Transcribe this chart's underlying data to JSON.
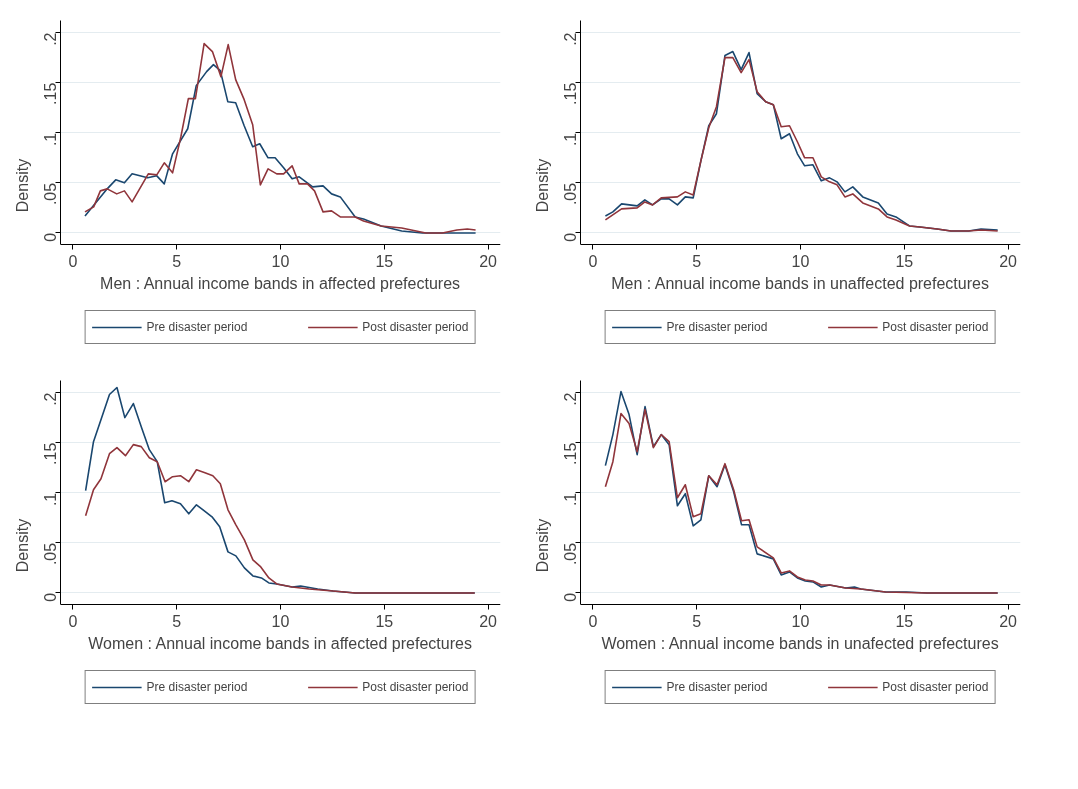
{
  "chart_data": [
    {
      "type": "line",
      "xlabel": "Men : Annual income bands in affected prefectures",
      "ylabel": "Density",
      "xlim": [
        -0.6,
        20.6
      ],
      "xticks": [
        0,
        5,
        10,
        15,
        20
      ],
      "ylim": [
        -0.012,
        0.212
      ],
      "yticks": [
        {
          "value": 0,
          "label": "0"
        },
        {
          "value": 0.05,
          "label": ".05"
        },
        {
          "value": 0.1,
          "label": ".1"
        },
        {
          "value": 0.15,
          "label": ".15"
        },
        {
          "value": 0.2,
          "label": ".2"
        }
      ],
      "grid": "y",
      "legend": "bottom",
      "line_style": "solid",
      "marker": "none",
      "series": [
        {
          "name": "Pre disaster period",
          "color": "#1a476f",
          "x": [
            0.58,
            1.65,
            2.06,
            2.48,
            2.85,
            3.6,
            4.04,
            4.4,
            4.8,
            5.53,
            5.94,
            6.44,
            6.77,
            7.1,
            7.46,
            7.84,
            8.25,
            8.66,
            9.0,
            9.4,
            9.74,
            10.15,
            10.56,
            10.9,
            11.55,
            12.05,
            12.46,
            12.88,
            13.6,
            14.0,
            14.85,
            15.84,
            16.83,
            17.8,
            19.4
          ],
          "values": [
            0.017,
            0.044,
            0.053,
            0.05,
            0.059,
            0.055,
            0.057,
            0.049,
            0.079,
            0.104,
            0.147,
            0.161,
            0.168,
            0.162,
            0.131,
            0.13,
            0.107,
            0.086,
            0.089,
            0.075,
            0.075,
            0.065,
            0.054,
            0.056,
            0.046,
            0.047,
            0.039,
            0.036,
            0.016,
            0.014,
            0.007,
            0.002,
            0,
            0,
            0
          ]
        },
        {
          "name": "Post disaster period",
          "color": "#90353b",
          "x": [
            0.58,
            1.0,
            1.32,
            1.65,
            2.11,
            2.48,
            2.85,
            3.63,
            4.04,
            4.4,
            4.8,
            5.2,
            5.56,
            5.9,
            6.32,
            6.72,
            7.13,
            7.48,
            7.84,
            8.25,
            8.66,
            9.03,
            9.4,
            9.82,
            10.15,
            10.56,
            10.9,
            11.3,
            11.64,
            12.05,
            12.46,
            12.88,
            13.6,
            14.0,
            14.85,
            15.84,
            17.0,
            17.8,
            18.5,
            19.0,
            19.4
          ],
          "values": [
            0.021,
            0.026,
            0.042,
            0.044,
            0.039,
            0.042,
            0.031,
            0.059,
            0.058,
            0.07,
            0.06,
            0.096,
            0.134,
            0.134,
            0.189,
            0.181,
            0.156,
            0.188,
            0.153,
            0.133,
            0.108,
            0.048,
            0.064,
            0.059,
            0.059,
            0.067,
            0.049,
            0.049,
            0.042,
            0.021,
            0.022,
            0.016,
            0.016,
            0.012,
            0.007,
            0.005,
            0,
            0,
            0.003,
            0.004,
            0.003
          ]
        }
      ]
    },
    {
      "type": "line",
      "xlabel": "Men : Annual income bands in unaffected prefectures",
      "ylabel": "Density",
      "xlim": [
        -0.6,
        20.6
      ],
      "xticks": [
        0,
        5,
        10,
        15,
        20
      ],
      "ylim": [
        -0.012,
        0.212
      ],
      "yticks": [
        {
          "value": 0,
          "label": "0"
        },
        {
          "value": 0.05,
          "label": ".05"
        },
        {
          "value": 0.1,
          "label": ".1"
        },
        {
          "value": 0.15,
          "label": ".15"
        },
        {
          "value": 0.2,
          "label": ".2"
        }
      ],
      "grid": "y",
      "legend": "bottom",
      "line_style": "solid",
      "marker": "none",
      "series": [
        {
          "name": "Pre disaster period",
          "color": "#1a476f",
          "x": [
            0.6,
            0.96,
            1.38,
            2.13,
            2.5,
            2.87,
            3.29,
            3.67,
            4.07,
            4.45,
            4.83,
            5.2,
            5.58,
            5.95,
            6.36,
            6.74,
            7.14,
            7.52,
            7.91,
            8.32,
            8.69,
            9.07,
            9.47,
            9.85,
            10.2,
            10.6,
            11.0,
            11.4,
            11.76,
            12.14,
            12.52,
            13.0,
            13.75,
            14.17,
            14.6,
            15.25,
            15.75,
            16.58,
            17.25,
            18.1,
            18.7,
            19.5
          ],
          "values": [
            0.017,
            0.021,
            0.029,
            0.027,
            0.033,
            0.028,
            0.034,
            0.034,
            0.028,
            0.036,
            0.035,
            0.072,
            0.107,
            0.119,
            0.177,
            0.181,
            0.163,
            0.18,
            0.139,
            0.131,
            0.128,
            0.094,
            0.099,
            0.079,
            0.067,
            0.068,
            0.052,
            0.055,
            0.051,
            0.041,
            0.046,
            0.036,
            0.03,
            0.019,
            0.016,
            0.007,
            0.006,
            0.004,
            0.002,
            0.002,
            0.004,
            0.003
          ]
        },
        {
          "name": "Post disaster period",
          "color": "#90353b",
          "x": [
            0.6,
            1.38,
            2.13,
            2.5,
            2.87,
            3.29,
            4.07,
            4.45,
            4.83,
            5.2,
            5.58,
            5.95,
            6.36,
            6.74,
            7.14,
            7.52,
            7.91,
            8.32,
            8.69,
            9.07,
            9.47,
            9.85,
            10.2,
            10.6,
            11.0,
            11.4,
            11.76,
            12.14,
            12.52,
            13.0,
            13.75,
            14.17,
            14.6,
            15.25,
            15.75,
            16.58,
            17.25,
            18.1,
            18.7,
            19.5
          ],
          "values": [
            0.013,
            0.024,
            0.025,
            0.031,
            0.028,
            0.035,
            0.036,
            0.041,
            0.038,
            0.072,
            0.105,
            0.126,
            0.175,
            0.175,
            0.16,
            0.173,
            0.141,
            0.131,
            0.128,
            0.106,
            0.107,
            0.091,
            0.075,
            0.075,
            0.056,
            0.051,
            0.048,
            0.036,
            0.039,
            0.03,
            0.024,
            0.016,
            0.013,
            0.007,
            0.006,
            0.004,
            0.002,
            0.002,
            0.003,
            0.002
          ]
        }
      ]
    },
    {
      "type": "line",
      "xlabel": "Women : Annual income bands in affected prefectures",
      "ylabel": "Density",
      "xlim": [
        -0.6,
        20.6
      ],
      "xticks": [
        0,
        5,
        10,
        15,
        20
      ],
      "ylim": [
        -0.012,
        0.212
      ],
      "yticks": [
        {
          "value": 0,
          "label": "0"
        },
        {
          "value": 0.05,
          "label": ".05"
        },
        {
          "value": 0.1,
          "label": ".1"
        },
        {
          "value": 0.15,
          "label": ".15"
        },
        {
          "value": 0.2,
          "label": ".2"
        }
      ],
      "grid": "y",
      "legend": "bottom",
      "line_style": "solid",
      "marker": "none",
      "series": [
        {
          "name": "Pre disaster period",
          "color": "#1a476f",
          "x": [
            0.61,
            0.99,
            1.76,
            2.12,
            2.5,
            2.91,
            3.32,
            3.68,
            4.06,
            4.42,
            4.77,
            5.18,
            5.58,
            5.95,
            6.7,
            7.07,
            7.47,
            7.85,
            8.26,
            8.67,
            9.08,
            9.44,
            9.82,
            10.56,
            10.97,
            11.79,
            12.53,
            13.6,
            15.3,
            19.36
          ],
          "values": [
            0.102,
            0.151,
            0.198,
            0.205,
            0.175,
            0.189,
            0.164,
            0.143,
            0.131,
            0.09,
            0.092,
            0.089,
            0.079,
            0.088,
            0.076,
            0.066,
            0.041,
            0.037,
            0.025,
            0.017,
            0.015,
            0.01,
            0.009,
            0.006,
            0.007,
            0.004,
            0.002,
            0,
            0,
            0
          ]
        },
        {
          "name": "Post disaster period",
          "color": "#90353b",
          "x": [
            0.61,
            0.99,
            1.35,
            1.76,
            2.12,
            2.53,
            2.91,
            3.29,
            3.68,
            4.06,
            4.44,
            4.8,
            5.18,
            5.58,
            5.95,
            6.36,
            6.74,
            7.1,
            7.47,
            7.85,
            8.26,
            8.67,
            9.05,
            9.44,
            9.82,
            10.56,
            11.38,
            12.53,
            13.6,
            19.36
          ],
          "values": [
            0.077,
            0.103,
            0.114,
            0.139,
            0.145,
            0.137,
            0.148,
            0.146,
            0.135,
            0.131,
            0.111,
            0.116,
            0.117,
            0.111,
            0.123,
            0.12,
            0.117,
            0.109,
            0.083,
            0.068,
            0.053,
            0.033,
            0.026,
            0.015,
            0.009,
            0.006,
            0.004,
            0.002,
            0,
            0
          ]
        }
      ]
    },
    {
      "type": "line",
      "xlabel": "Women : Annual income bands in unafected prefectures",
      "ylabel": "Density",
      "xlim": [
        -0.6,
        20.6
      ],
      "xticks": [
        0,
        5,
        10,
        15,
        20
      ],
      "ylim": [
        -0.012,
        0.212
      ],
      "yticks": [
        {
          "value": 0,
          "label": "0"
        },
        {
          "value": 0.05,
          "label": ".05"
        },
        {
          "value": 0.1,
          "label": ".1"
        },
        {
          "value": 0.15,
          "label": ".15"
        },
        {
          "value": 0.2,
          "label": ".2"
        }
      ],
      "grid": "y",
      "legend": "bottom",
      "line_style": "solid",
      "marker": "none",
      "series": [
        {
          "name": "Pre disaster period",
          "color": "#1a476f",
          "x": [
            0.6,
            0.96,
            1.35,
            1.74,
            2.13,
            2.51,
            2.91,
            3.29,
            3.67,
            4.07,
            4.45,
            4.83,
            5.2,
            5.58,
            5.98,
            6.36,
            6.78,
            7.16,
            7.52,
            7.91,
            8.69,
            9.07,
            9.47,
            9.85,
            10.23,
            10.6,
            11.0,
            11.4,
            12.18,
            12.6,
            12.9,
            14.1,
            15.1,
            16.1,
            19.5
          ],
          "values": [
            0.127,
            0.158,
            0.201,
            0.178,
            0.138,
            0.186,
            0.146,
            0.158,
            0.148,
            0.087,
            0.099,
            0.067,
            0.073,
            0.117,
            0.106,
            0.128,
            0.101,
            0.068,
            0.068,
            0.039,
            0.034,
            0.018,
            0.021,
            0.015,
            0.012,
            0.011,
            0.006,
            0.008,
            0.005,
            0.006,
            0.004,
            0.001,
            0.001,
            0,
            0
          ]
        },
        {
          "name": "Post disaster period",
          "color": "#90353b",
          "x": [
            0.6,
            0.96,
            1.35,
            1.74,
            2.13,
            2.51,
            2.91,
            3.29,
            3.67,
            4.07,
            4.45,
            4.83,
            5.2,
            5.58,
            5.98,
            6.36,
            6.78,
            7.16,
            7.52,
            7.91,
            8.69,
            9.07,
            9.47,
            9.85,
            10.23,
            10.6,
            11.0,
            11.4,
            12.18,
            12.9,
            14.1,
            16.1,
            19.5
          ],
          "values": [
            0.106,
            0.131,
            0.179,
            0.169,
            0.141,
            0.183,
            0.145,
            0.158,
            0.151,
            0.095,
            0.108,
            0.076,
            0.079,
            0.117,
            0.108,
            0.129,
            0.103,
            0.072,
            0.073,
            0.046,
            0.035,
            0.02,
            0.022,
            0.016,
            0.013,
            0.012,
            0.008,
            0.008,
            0.005,
            0.004,
            0.001,
            0,
            0
          ]
        }
      ]
    }
  ]
}
